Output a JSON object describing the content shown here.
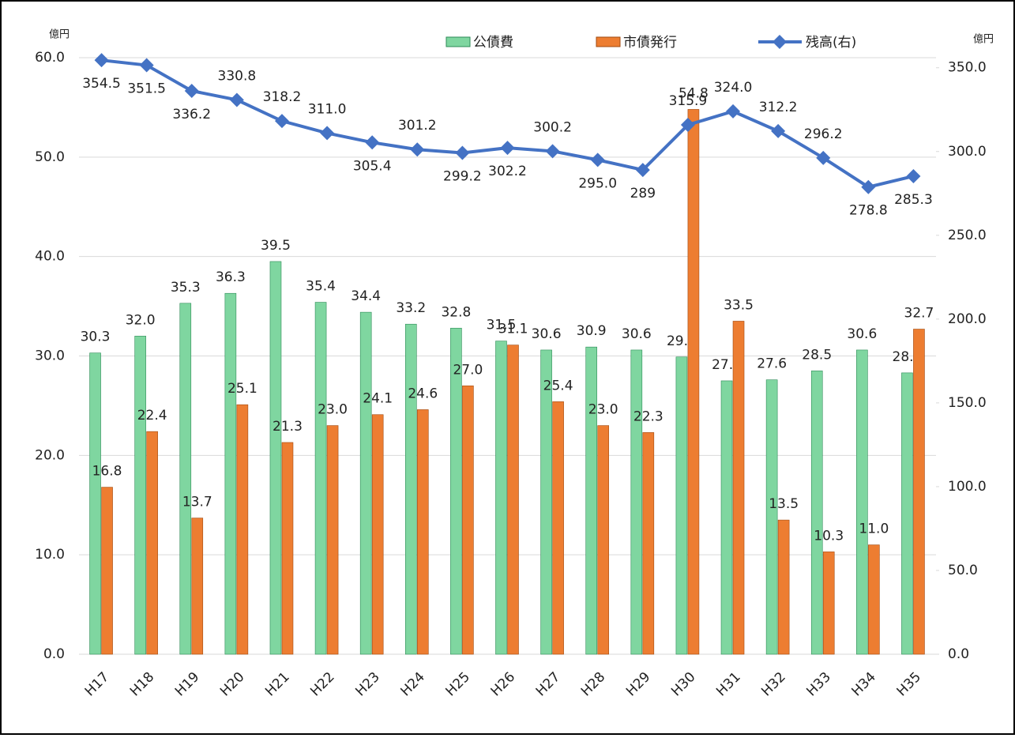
{
  "chart_data": {
    "type": "bar-line",
    "y_label": "億円",
    "y2_label": "億円",
    "categories": [
      "H17",
      "H18",
      "H19",
      "H20",
      "H21",
      "H22",
      "H23",
      "H24",
      "H25",
      "H26",
      "H27",
      "H28",
      "H29",
      "H30",
      "H31",
      "H32",
      "H33",
      "H34",
      "H35"
    ],
    "series": [
      {
        "name": "公債費",
        "type": "bar",
        "color": "#7fd6a0",
        "values": [
          30.3,
          32.0,
          35.3,
          36.3,
          39.5,
          35.4,
          34.4,
          33.2,
          32.8,
          31.5,
          30.6,
          30.9,
          30.6,
          29.9,
          27.5,
          27.6,
          28.5,
          30.6,
          28.3
        ],
        "value_labels": [
          "30.3",
          "32.0",
          "35.3",
          "36.3",
          "39.5",
          "35.4",
          "34.4",
          "33.2",
          "32.8",
          "31.5",
          "30.6",
          "30.9",
          "30.6",
          "29.9",
          "27.5",
          "27.6",
          "28.5",
          "30.6",
          "28.3"
        ]
      },
      {
        "name": "市債発行",
        "type": "bar",
        "color": "#ed7d31",
        "values": [
          16.8,
          22.4,
          13.7,
          25.1,
          21.3,
          23.0,
          24.1,
          24.6,
          27.0,
          31.1,
          25.4,
          23.0,
          22.3,
          54.8,
          33.5,
          13.5,
          10.3,
          11.0,
          32.7
        ],
        "value_labels": [
          "16.8",
          "22.4",
          "13.7",
          "25.1",
          "21.3",
          "23.0",
          "24.1",
          "24.6",
          "27.0",
          "31.1",
          "25.4",
          "23.0",
          "22.3",
          "54.8",
          "33.5",
          "13.5",
          "10.3",
          "11.0",
          "32.7"
        ]
      },
      {
        "name": "残高(右)",
        "type": "line",
        "axis": "y2",
        "color": "#4472c4",
        "values": [
          354.5,
          351.5,
          336.2,
          330.8,
          318.2,
          311.0,
          305.4,
          301.2,
          299.2,
          302.2,
          300.2,
          295.0,
          289,
          315.9,
          324.0,
          312.2,
          296.2,
          278.8,
          285.3
        ],
        "value_labels": [
          "354.5",
          "351.5",
          "336.2",
          "330.8",
          "318.2",
          "311.0",
          "305.4",
          "301.2",
          "299.2",
          "302.2",
          "300.2",
          "295.0",
          "289",
          "315.9",
          "324.0",
          "312.2",
          "296.2",
          "278.8",
          "285.3"
        ]
      }
    ],
    "ylim": [
      0,
      60
    ],
    "yticks": [
      {
        "value": 0,
        "label": "0.0"
      },
      {
        "value": 10,
        "label": "10.0"
      },
      {
        "value": 20,
        "label": "20.0"
      },
      {
        "value": 30,
        "label": "30.0"
      },
      {
        "value": 40,
        "label": "40.0"
      },
      {
        "value": 50,
        "label": "50.0"
      },
      {
        "value": 60,
        "label": "60.0"
      }
    ],
    "y2lim": [
      0,
      356
    ],
    "y2ticks": [
      {
        "value": 0,
        "label": "0.0"
      },
      {
        "value": 50,
        "label": "50.0"
      },
      {
        "value": 100,
        "label": "100.0"
      },
      {
        "value": 150,
        "label": "150.0"
      },
      {
        "value": 200,
        "label": "200.0"
      },
      {
        "value": 250,
        "label": "250.0"
      },
      {
        "value": 300,
        "label": "300.0"
      },
      {
        "value": 350,
        "label": "350.0"
      }
    ],
    "grid": true,
    "legend": "top"
  }
}
